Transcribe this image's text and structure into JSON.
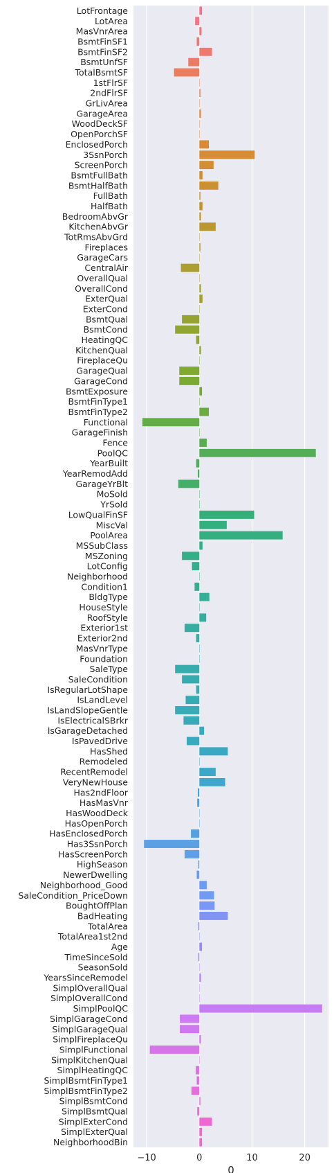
{
  "chart_data": {
    "type": "bar",
    "orientation": "horizontal",
    "xlabel": "0",
    "ylabel": "",
    "xlim": [
      -12.5,
      24.5
    ],
    "xticks": [
      -10,
      0,
      10,
      20
    ],
    "grid": true,
    "legend": "none",
    "palette": [
      "#f77189",
      "#dc8932",
      "#ae9d31",
      "#77ab31",
      "#33b07a",
      "#36ada4",
      "#38a9c5",
      "#6e9bf4",
      "#cc7af4",
      "#f565cc"
    ],
    "categories": [
      "LotFrontage",
      "LotArea",
      "MasVnrArea",
      "BsmtFinSF1",
      "BsmtFinSF2",
      "BsmtUnfSF",
      "TotalBsmtSF",
      "1stFlrSF",
      "2ndFlrSF",
      "GrLivArea",
      "GarageArea",
      "WoodDeckSF",
      "OpenPorchSF",
      "EnclosedPorch",
      "3SsnPorch",
      "ScreenPorch",
      "BsmtFullBath",
      "BsmtHalfBath",
      "FullBath",
      "HalfBath",
      "BedroomAbvGr",
      "KitchenAbvGr",
      "TotRmsAbvGrd",
      "Fireplaces",
      "GarageCars",
      "CentralAir",
      "OverallQual",
      "OverallCond",
      "ExterQual",
      "ExterCond",
      "BsmtQual",
      "BsmtCond",
      "HeatingQC",
      "KitchenQual",
      "FireplaceQu",
      "GarageQual",
      "GarageCond",
      "BsmtExposure",
      "BsmtFinType1",
      "BsmtFinType2",
      "Functional",
      "GarageFinish",
      "Fence",
      "PoolQC",
      "YearBuilt",
      "YearRemodAdd",
      "GarageYrBlt",
      "MoSold",
      "YrSold",
      "LowQualFinSF",
      "MiscVal",
      "PoolArea",
      "MSSubClass",
      "MSZoning",
      "LotConfig",
      "Neighborhood",
      "Condition1",
      "BldgType",
      "HouseStyle",
      "RoofStyle",
      "Exterior1st",
      "Exterior2nd",
      "MasVnrType",
      "Foundation",
      "SaleType",
      "SaleCondition",
      "IsRegularLotShape",
      "IsLandLevel",
      "IsLandSlopeGentle",
      "IsElectricalSBrkr",
      "IsGarageDetached",
      "IsPavedDrive",
      "HasShed",
      "Remodeled",
      "RecentRemodel",
      "VeryNewHouse",
      "Has2ndFloor",
      "HasMasVnr",
      "HasWoodDeck",
      "HasOpenPorch",
      "HasEnclosedPorch",
      "Has3SsnPorch",
      "HasScreenPorch",
      "HighSeason",
      "NewerDwelling",
      "Neighborhood_Good",
      "SaleCondition_PriceDown",
      "BoughtOffPlan",
      "BadHeating",
      "TotalArea",
      "TotalArea1st2nd",
      "Age",
      "TimeSinceSold",
      "SeasonSold",
      "YearsSinceRemodel",
      "SimplOverallQual",
      "SimplOverallCond",
      "SimplPoolQC",
      "SimplGarageCond",
      "SimplGarageQual",
      "SimplFireplaceQu",
      "SimplFunctional",
      "SimplKitchenQual",
      "SimplHeatingQC",
      "SimplBsmtFinType1",
      "SimplBsmtFinType2",
      "SimplBsmtCond",
      "SimplBsmtQual",
      "SimplExterCond",
      "SimplExterQual",
      "NeighborhoodBin"
    ],
    "values": [
      0.5,
      -0.8,
      0.4,
      -0.5,
      2.4,
      -2.1,
      -4.8,
      0,
      0.2,
      0,
      0.3,
      0,
      0,
      1.8,
      10.5,
      2.7,
      0.6,
      3.6,
      0.2,
      0.6,
      0.3,
      3.1,
      0,
      0.2,
      0,
      -3.5,
      0,
      0.3,
      0.6,
      0,
      -3.3,
      -4.6,
      -0.6,
      0.3,
      0,
      -3.8,
      -3.8,
      0.5,
      0,
      1.8,
      -10.8,
      0,
      1.4,
      22.1,
      -0.6,
      -0.3,
      -4.0,
      0,
      0,
      10.4,
      5.2,
      15.8,
      0.6,
      -3.3,
      -1.4,
      0,
      -0.9,
      1.9,
      0,
      1.3,
      -2.8,
      -0.6,
      0,
      0,
      -4.6,
      -3.3,
      -0.6,
      -2.6,
      -4.6,
      -3.0,
      0.9,
      -2.4,
      5.4,
      0,
      3.1,
      4.9,
      -0.3,
      -0.4,
      0,
      0,
      -1.6,
      -10.5,
      -2.8,
      -0.2,
      -0.5,
      1.4,
      2.8,
      2.9,
      5.4,
      -0.2,
      0,
      0.5,
      -0.2,
      0,
      0.3,
      0,
      0,
      23.3,
      -3.7,
      -3.7,
      0.3,
      -9.4,
      0,
      -0.7,
      -0.5,
      -1.5,
      0.2,
      -0.4,
      2.4,
      0.5,
      0.5
    ]
  }
}
